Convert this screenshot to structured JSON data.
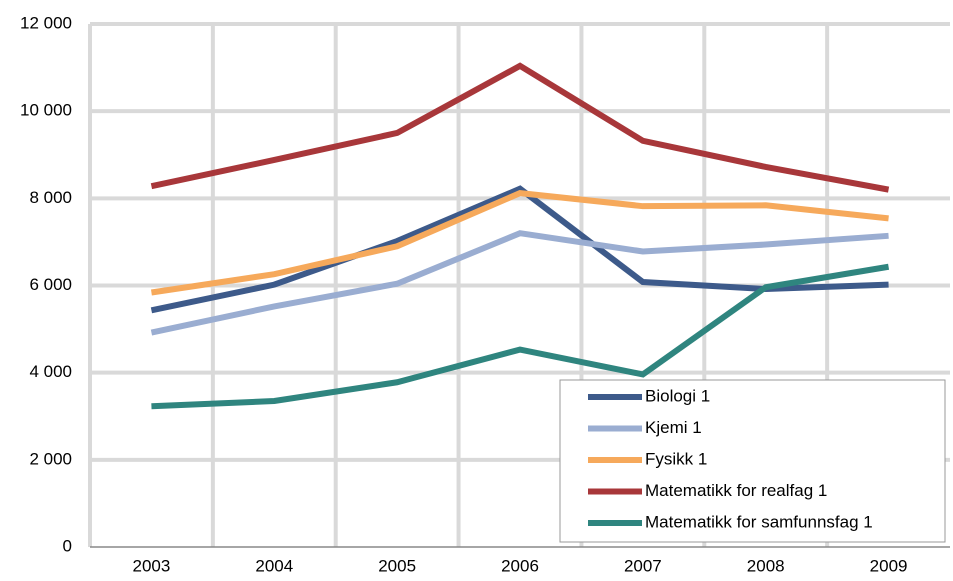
{
  "chart_data": {
    "type": "line",
    "categories": [
      "2003",
      "2004",
      "2005",
      "2006",
      "2007",
      "2008",
      "2009"
    ],
    "series": [
      {
        "name": "Biologi 1",
        "color": "#3d5a8a",
        "values": [
          5430,
          6020,
          7020,
          8220,
          6080,
          5920,
          6020
        ]
      },
      {
        "name": "Kjemi 1",
        "color": "#9aadd1",
        "values": [
          4920,
          5520,
          6040,
          7200,
          6780,
          6940,
          7140
        ]
      },
      {
        "name": "Fysikk 1",
        "color": "#f6a95b",
        "values": [
          5840,
          6260,
          6900,
          8120,
          7820,
          7840,
          7540
        ]
      },
      {
        "name": "Matematikk for realfag 1",
        "color": "#a8373a",
        "values": [
          8280,
          8880,
          9500,
          11040,
          9320,
          8720,
          8200
        ]
      },
      {
        "name": "Matematikk for samfunnsfag 1",
        "color": "#2f857f",
        "values": [
          3230,
          3350,
          3780,
          4530,
          3960,
          5960,
          6430
        ]
      }
    ],
    "ylim": [
      0,
      12000
    ],
    "yticks": [
      0,
      {
        "value": 2000,
        "label": "2 000"
      },
      {
        "value": 4000,
        "label": "4 000"
      },
      {
        "value": 6000,
        "label": "6 000"
      },
      {
        "value": 8000,
        "label": "8 000"
      },
      {
        "value": 10000,
        "label": "10 000"
      },
      {
        "value": 12000,
        "label": "12 000"
      }
    ],
    "grid": true,
    "legend": "lower right"
  }
}
